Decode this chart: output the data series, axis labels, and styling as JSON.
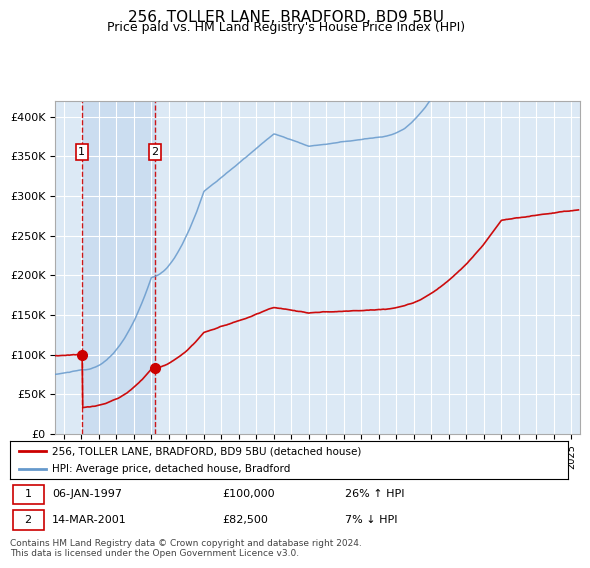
{
  "title": "256, TOLLER LANE, BRADFORD, BD9 5BU",
  "subtitle": "Price paid vs. HM Land Registry's House Price Index (HPI)",
  "ylim": [
    0,
    420000
  ],
  "xlim_start": 1995.5,
  "xlim_end": 2025.5,
  "background_color": "#dce9f5",
  "legend_entry1": "256, TOLLER LANE, BRADFORD, BD9 5BU (detached house)",
  "legend_entry2": "HPI: Average price, detached house, Bradford",
  "sale1_date": 1997.02,
  "sale1_price": 100000,
  "sale1_label": "1",
  "sale2_date": 2001.21,
  "sale2_price": 82500,
  "sale2_label": "2",
  "footer": "Contains HM Land Registry data © Crown copyright and database right 2024.\nThis data is licensed under the Open Government Licence v3.0.",
  "red_line_color": "#cc0000",
  "blue_line_color": "#6699cc",
  "dashed_line_color": "#cc0000",
  "grid_color": "#ffffff",
  "shade_color": "#c5d8ee"
}
